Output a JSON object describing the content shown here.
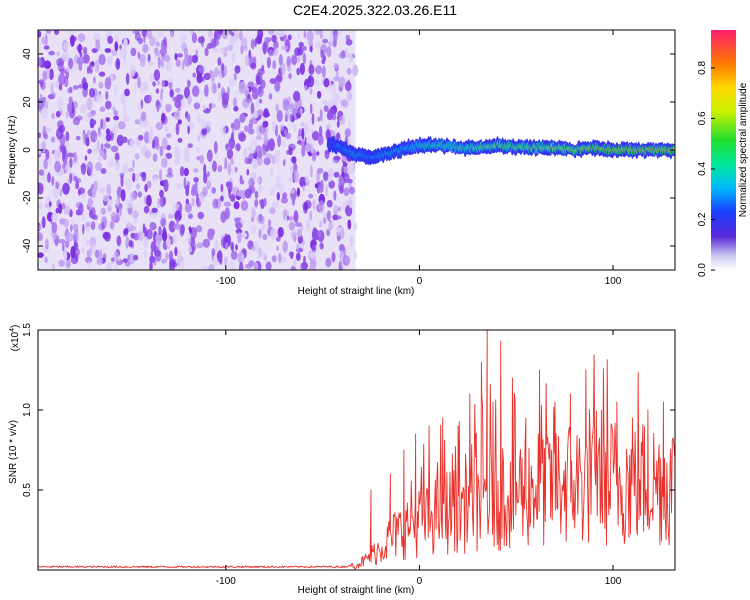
{
  "title": "C2E4.2025.322.03.26.E11",
  "colors": {
    "signal_line": "#e8312a",
    "spectrogram_noise": "#7a2ee0",
    "frame": "#000000"
  },
  "chart_data": [
    {
      "type": "heatmap",
      "name": "spectrogram",
      "xlabel": "Height of straight line (km)",
      "ylabel": "Frequency (Hz)",
      "xlim": [
        -197,
        132
      ],
      "ylim": [
        -50,
        50
      ],
      "xticks": [
        -100,
        0,
        100
      ],
      "xtick_labels": [
        "-100",
        "0",
        "100"
      ],
      "yticks": [
        -40,
        -20,
        0,
        20,
        40
      ],
      "ytick_labels": [
        "-40",
        "-20",
        "0",
        "20",
        "40"
      ],
      "noise_region_x": [
        -197,
        -33
      ],
      "signal_track": {
        "x": [
          -47,
          -40,
          -33,
          -25,
          -15,
          -5,
          0,
          10,
          20,
          30,
          40,
          50,
          60,
          70,
          80,
          90,
          100,
          110,
          120,
          132
        ],
        "freq": [
          3,
          1,
          -2,
          -3,
          -1,
          1,
          2,
          2,
          1,
          1,
          2,
          1,
          1,
          1,
          0,
          1,
          0,
          0,
          0,
          0
        ],
        "amplitude": [
          0.3,
          0.4,
          0.45,
          0.4,
          0.45,
          0.5,
          0.55,
          0.6,
          0.6,
          0.65,
          0.7,
          0.7,
          0.7,
          0.75,
          0.8,
          0.8,
          0.85,
          0.85,
          0.85,
          0.85
        ]
      },
      "colorbar": {
        "label": "Normalized spectral amplitude",
        "range": [
          0.0,
          0.95
        ],
        "ticks": [
          0.0,
          0.2,
          0.4,
          0.6,
          0.8
        ],
        "tick_labels": [
          "0.0",
          "0.2",
          "0.4",
          "0.6",
          "0.8"
        ]
      }
    },
    {
      "type": "line",
      "name": "snr",
      "xlabel": "Height of straight line (km)",
      "ylabel": "SNR (10 * v/v)",
      "multiplier_label": "(x10",
      "multiplier_exponent": "4",
      "xlim": [
        -197,
        132
      ],
      "ylim": [
        0,
        1.5
      ],
      "xticks": [
        -100,
        0,
        100
      ],
      "xtick_labels": [
        "-100",
        "0",
        "100"
      ],
      "yticks": [
        0.5,
        1.0,
        1.5
      ],
      "ytick_labels": [
        "0.5",
        "1.0",
        "1.5"
      ],
      "series": [
        {
          "name": "SNR",
          "profile_x": [
            -197,
            -40,
            -33,
            -28,
            -22,
            -15,
            -5,
            0,
            10,
            20,
            30,
            40,
            50,
            60,
            70,
            80,
            90,
            100,
            110,
            120,
            132
          ],
          "baseline": [
            0.02,
            0.02,
            0.03,
            0.06,
            0.12,
            0.2,
            0.28,
            0.32,
            0.36,
            0.4,
            0.44,
            0.48,
            0.5,
            0.52,
            0.54,
            0.55,
            0.56,
            0.56,
            0.56,
            0.55,
            0.55
          ],
          "spike_x": [
            -25,
            -15,
            -8,
            -2,
            5,
            12,
            20,
            26,
            32,
            35,
            38,
            42,
            48,
            55,
            62,
            70,
            78,
            86,
            94,
            102,
            110,
            118,
            126
          ],
          "spike_y": [
            0.5,
            0.6,
            0.75,
            0.85,
            0.9,
            0.95,
            0.9,
            1.1,
            1.3,
            1.5,
            1.05,
            1.43,
            1.2,
            0.95,
            1.25,
            1.05,
            1.1,
            1.25,
            1.0,
            1.05,
            0.95,
            1.0,
            1.05
          ]
        }
      ]
    }
  ]
}
